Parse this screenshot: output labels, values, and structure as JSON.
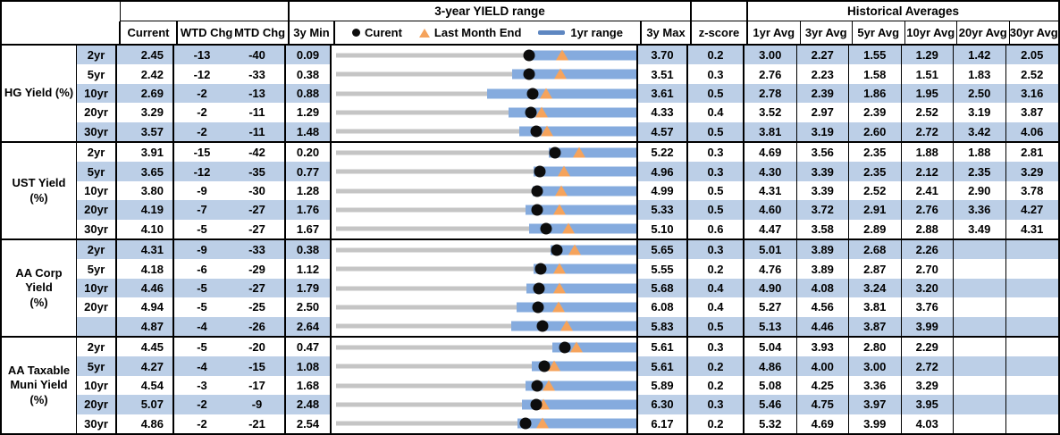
{
  "chart_data": {
    "type": "table",
    "title": "3-year YIELD range",
    "header": {
      "range_title": "3-year YIELD range",
      "hist_title": "Historical Averages",
      "col_current": "Current",
      "col_wtd": "WTD Chg",
      "col_mtd": "MTD Chg",
      "col_3ymin": "3y Min",
      "col_3ymax": "3y Max",
      "col_zscore": "z-score",
      "avg_cols": [
        "1yr Avg",
        "3yr Avg",
        "5yr Avg",
        "10yr Avg",
        "20yr Avg",
        "30yr Avg"
      ],
      "legend": {
        "current": "Curent",
        "last_month": "Last Month End",
        "range": "1yr range"
      }
    },
    "colors": {
      "stripe": "#BCCFE7",
      "range_bar": "#85ABDE",
      "legend_bar": "#5E87C1",
      "triangle": "#F5A35C",
      "gray_line": "#C5C5C5",
      "dot": "#0d0d0d"
    },
    "sections": [
      {
        "label": "HG Yield (%)",
        "rows": [
          {
            "tenor": "2yr",
            "current": "2.45",
            "wtd": "-13",
            "mtd": "-40",
            "min": "0.09",
            "max": "3.70",
            "z": "0.2",
            "avgs": [
              "3.00",
              "2.27",
              "1.55",
              "1.29",
              "1.42",
              "2.05"
            ],
            "last_month_end": 2.85,
            "yr1_low": 2.4,
            "yr1_high": 3.7
          },
          {
            "tenor": "5yr",
            "current": "2.42",
            "wtd": "-12",
            "mtd": "-33",
            "min": "0.38",
            "max": "3.51",
            "z": "0.3",
            "avgs": [
              "2.76",
              "2.23",
              "1.58",
              "1.51",
              "1.83",
              "2.52"
            ],
            "last_month_end": 2.75,
            "yr1_low": 2.24,
            "yr1_high": 3.51
          },
          {
            "tenor": "10yr",
            "current": "2.69",
            "wtd": "-2",
            "mtd": "-13",
            "min": "0.88",
            "max": "3.61",
            "z": "0.5",
            "avgs": [
              "2.78",
              "2.39",
              "1.86",
              "1.95",
              "2.50",
              "3.16"
            ],
            "last_month_end": 2.82,
            "yr1_low": 2.27,
            "yr1_high": 3.61
          },
          {
            "tenor": "20yr",
            "current": "3.29",
            "wtd": "-2",
            "mtd": "-11",
            "min": "1.29",
            "max": "4.33",
            "z": "0.4",
            "avgs": [
              "3.52",
              "2.97",
              "2.39",
              "2.52",
              "3.19",
              "3.87"
            ],
            "last_month_end": 3.4,
            "yr1_low": 3.06,
            "yr1_high": 4.33
          },
          {
            "tenor": "30yr",
            "current": "3.57",
            "wtd": "-2",
            "mtd": "-11",
            "min": "1.48",
            "max": "4.57",
            "z": "0.5",
            "avgs": [
              "3.81",
              "3.19",
              "2.60",
              "2.72",
              "3.42",
              "4.06"
            ],
            "last_month_end": 3.68,
            "yr1_low": 3.39,
            "yr1_high": 4.57
          }
        ]
      },
      {
        "label": "UST Yield (%)",
        "rows": [
          {
            "tenor": "2yr",
            "current": "3.91",
            "wtd": "-15",
            "mtd": "-42",
            "min": "0.20",
            "max": "5.22",
            "z": "0.3",
            "avgs": [
              "4.69",
              "3.56",
              "2.35",
              "1.88",
              "1.88",
              "2.81"
            ],
            "last_month_end": 4.33,
            "yr1_low": 3.81,
            "yr1_high": 5.22
          },
          {
            "tenor": "5yr",
            "current": "3.65",
            "wtd": "-12",
            "mtd": "-35",
            "min": "0.77",
            "max": "4.96",
            "z": "0.3",
            "avgs": [
              "4.30",
              "3.39",
              "2.35",
              "2.12",
              "2.35",
              "3.29"
            ],
            "last_month_end": 4.0,
            "yr1_low": 3.57,
            "yr1_high": 4.96
          },
          {
            "tenor": "10yr",
            "current": "3.80",
            "wtd": "-9",
            "mtd": "-30",
            "min": "1.28",
            "max": "4.99",
            "z": "0.5",
            "avgs": [
              "4.31",
              "3.39",
              "2.52",
              "2.41",
              "2.90",
              "3.78"
            ],
            "last_month_end": 4.1,
            "yr1_low": 3.75,
            "yr1_high": 4.99
          },
          {
            "tenor": "20yr",
            "current": "4.19",
            "wtd": "-7",
            "mtd": "-27",
            "min": "1.76",
            "max": "5.33",
            "z": "0.5",
            "avgs": [
              "4.60",
              "3.72",
              "2.91",
              "2.76",
              "3.36",
              "4.27"
            ],
            "last_month_end": 4.46,
            "yr1_low": 4.05,
            "yr1_high": 5.33
          },
          {
            "tenor": "30yr",
            "current": "4.10",
            "wtd": "-5",
            "mtd": "-27",
            "min": "1.67",
            "max": "5.10",
            "z": "0.6",
            "avgs": [
              "4.47",
              "3.58",
              "2.89",
              "2.88",
              "3.49",
              "4.31"
            ],
            "last_month_end": 4.37,
            "yr1_low": 3.91,
            "yr1_high": 5.1
          }
        ]
      },
      {
        "label": "AA Corp Yield\n(%)",
        "rows": [
          {
            "tenor": "2yr",
            "current": "4.31",
            "wtd": "-9",
            "mtd": "-33",
            "min": "0.38",
            "max": "5.65",
            "z": "0.3",
            "avgs": [
              "5.01",
              "3.89",
              "2.68",
              "2.26",
              "",
              ""
            ],
            "last_month_end": 4.64,
            "yr1_low": 4.2,
            "yr1_high": 5.65
          },
          {
            "tenor": "5yr",
            "current": "4.18",
            "wtd": "-6",
            "mtd": "-29",
            "min": "1.12",
            "max": "5.55",
            "z": "0.2",
            "avgs": [
              "4.76",
              "3.89",
              "2.87",
              "2.70",
              "",
              ""
            ],
            "last_month_end": 4.47,
            "yr1_low": 4.07,
            "yr1_high": 5.55
          },
          {
            "tenor": "10yr",
            "current": "4.46",
            "wtd": "-5",
            "mtd": "-27",
            "min": "1.79",
            "max": "5.68",
            "z": "0.4",
            "avgs": [
              "4.90",
              "4.08",
              "3.24",
              "3.20",
              "",
              ""
            ],
            "last_month_end": 4.73,
            "yr1_low": 4.29,
            "yr1_high": 5.68
          },
          {
            "tenor": "20yr",
            "current": "4.94",
            "wtd": "-5",
            "mtd": "-25",
            "min": "2.50",
            "max": "6.08",
            "z": "0.4",
            "avgs": [
              "5.27",
              "4.56",
              "3.81",
              "3.76",
              "",
              ""
            ],
            "last_month_end": 5.19,
            "yr1_low": 4.68,
            "yr1_high": 6.08
          },
          {
            "tenor": "",
            "current": "4.87",
            "wtd": "-4",
            "mtd": "-26",
            "min": "2.64",
            "max": "5.83",
            "z": "0.5",
            "avgs": [
              "5.13",
              "4.46",
              "3.87",
              "3.99",
              "",
              ""
            ],
            "last_month_end": 5.13,
            "yr1_low": 4.53,
            "yr1_high": 5.83
          }
        ]
      },
      {
        "label": "AA Taxable\nMuni Yield\n(%)",
        "rows": [
          {
            "tenor": "2yr",
            "current": "4.45",
            "wtd": "-5",
            "mtd": "-20",
            "min": "0.47",
            "max": "5.61",
            "z": "0.3",
            "avgs": [
              "5.04",
              "3.93",
              "2.80",
              "2.29",
              "",
              ""
            ],
            "last_month_end": 4.65,
            "yr1_low": 4.23,
            "yr1_high": 5.61
          },
          {
            "tenor": "5yr",
            "current": "4.27",
            "wtd": "-4",
            "mtd": "-15",
            "min": "1.08",
            "max": "5.61",
            "z": "0.2",
            "avgs": [
              "4.86",
              "4.00",
              "3.00",
              "2.72",
              "",
              ""
            ],
            "last_month_end": 4.42,
            "yr1_low": 4.07,
            "yr1_high": 5.61
          },
          {
            "tenor": "10yr",
            "current": "4.54",
            "wtd": "-3",
            "mtd": "-17",
            "min": "1.68",
            "max": "5.89",
            "z": "0.2",
            "avgs": [
              "5.08",
              "4.25",
              "3.36",
              "3.29",
              "",
              ""
            ],
            "last_month_end": 4.71,
            "yr1_low": 4.38,
            "yr1_high": 5.89
          },
          {
            "tenor": "20yr",
            "current": "5.07",
            "wtd": "-2",
            "mtd": "-9",
            "min": "2.48",
            "max": "6.30",
            "z": "0.3",
            "avgs": [
              "5.46",
              "4.75",
              "3.97",
              "3.95",
              "",
              ""
            ],
            "last_month_end": 5.16,
            "yr1_low": 4.88,
            "yr1_high": 6.3
          },
          {
            "tenor": "30yr",
            "current": "4.86",
            "wtd": "-2",
            "mtd": "-21",
            "min": "2.54",
            "max": "6.17",
            "z": "0.2",
            "avgs": [
              "5.32",
              "4.69",
              "3.99",
              "4.03",
              "",
              ""
            ],
            "last_month_end": 5.07,
            "yr1_low": 4.77,
            "yr1_high": 6.17
          }
        ]
      }
    ]
  }
}
